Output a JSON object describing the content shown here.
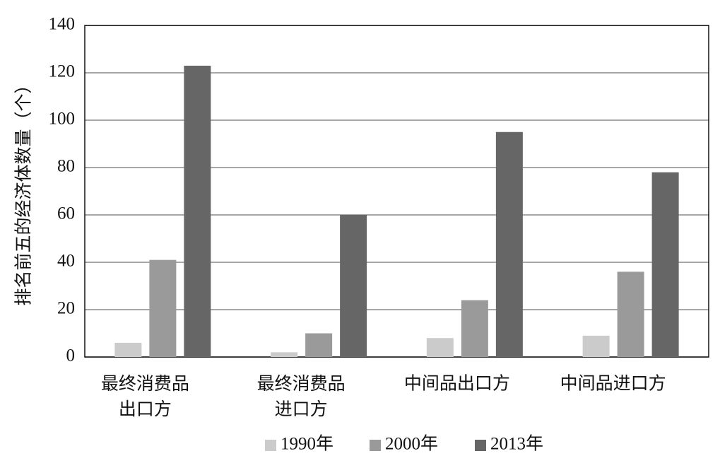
{
  "chart_data": {
    "type": "bar",
    "y_label": "排名前五的经济体数量（个）",
    "categories": [
      "最终消费品\n出口方",
      "最终消费品\n进口方",
      "中间品出口方",
      "中间品进口方"
    ],
    "series": [
      {
        "name": "1990年",
        "color": "#cbcbcb",
        "values": [
          6,
          2,
          8,
          9
        ]
      },
      {
        "name": "2000年",
        "color": "#9a9a9a",
        "values": [
          41,
          10,
          24,
          36
        ]
      },
      {
        "name": "2013年",
        "color": "#666666",
        "values": [
          123,
          60,
          95,
          78
        ]
      }
    ],
    "ylim": [
      0,
      140
    ],
    "yticks": [
      0,
      20,
      40,
      60,
      80,
      100,
      120,
      140
    ],
    "grid": true,
    "legend": "bottom"
  }
}
